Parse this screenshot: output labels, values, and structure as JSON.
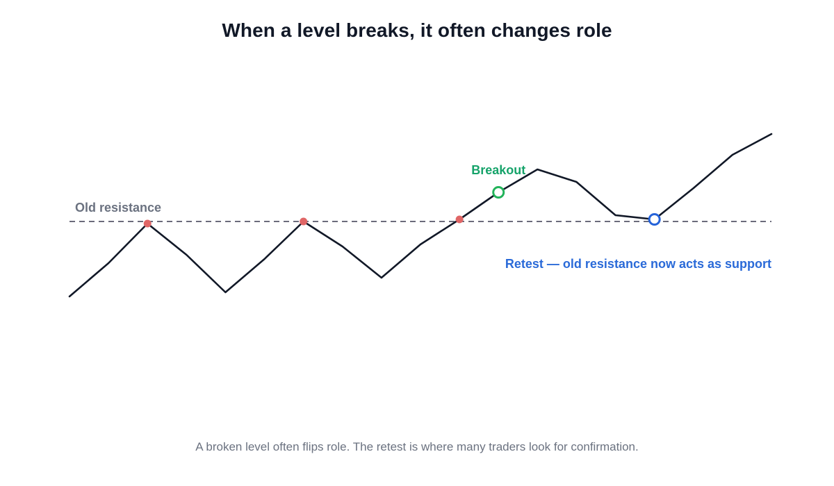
{
  "title": "When a level breaks, it often changes role",
  "caption": "A broken level often flips role. The retest is where many traders look for confirmation.",
  "colors": {
    "price_line": "#111827",
    "level_line": "#6b6b7b",
    "resistance_touch": "#e06666",
    "breakout": "#22b35a",
    "breakout_label": "#16a36a",
    "retest": "#2563d9",
    "retest_label": "#2a6ad8",
    "level_label": "#6b7280"
  },
  "chart_data": {
    "type": "line",
    "title": "When a level breaks, it often changes role",
    "xlabel": "",
    "ylabel": "",
    "grid": false,
    "x": [
      0,
      1,
      2,
      3,
      4,
      5,
      6,
      7,
      8,
      9,
      10,
      11,
      12,
      13,
      14,
      15,
      16,
      17,
      18
    ],
    "ylim": [
      0,
      100
    ],
    "series": [
      {
        "values": [
          22,
          38,
          57,
          42,
          24,
          40,
          58,
          46,
          31,
          47,
          59,
          72,
          83,
          77,
          61,
          59,
          74,
          90,
          100
        ]
      }
    ],
    "level": {
      "value": 58,
      "label": "Old resistance",
      "style": "dashed"
    },
    "resistance_touches": [
      2,
      6,
      10
    ],
    "annotations": [
      {
        "index": 11,
        "label": "Breakout",
        "kind": "breakout"
      },
      {
        "index": 15,
        "label": "Retest — old resistance now acts as support",
        "kind": "retest"
      }
    ]
  }
}
